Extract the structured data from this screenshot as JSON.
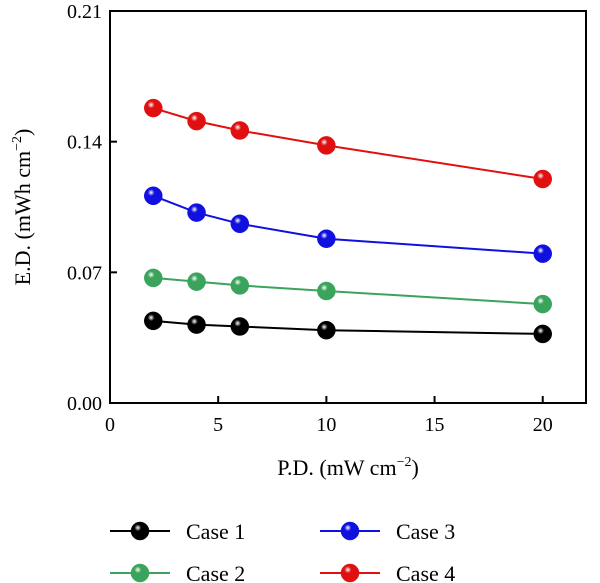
{
  "chart_data": {
    "type": "line",
    "xlabel": {
      "main": "P.D. (mW cm",
      "sup": "−2",
      "tail": ")"
    },
    "ylabel": {
      "main": "E.D. (mWh cm",
      "sup": "−2",
      "tail": ")"
    },
    "xlim": [
      0,
      22
    ],
    "ylim": [
      0,
      0.21
    ],
    "xticks": [
      0,
      5,
      10,
      15,
      20
    ],
    "xtick_labels": [
      "0",
      "5",
      "10",
      "15",
      "20"
    ],
    "yticks": [
      0,
      0.07,
      0.14,
      0.21
    ],
    "ytick_labels": [
      "0.00",
      "0.07",
      "0.14",
      "0.21"
    ],
    "x": [
      2,
      4,
      6,
      10,
      20
    ],
    "series": [
      {
        "name": "Case 1",
        "color": "#000000",
        "values": [
          0.044,
          0.042,
          0.041,
          0.039,
          0.037
        ]
      },
      {
        "name": "Case 2",
        "color": "#3aa35c",
        "values": [
          0.067,
          0.065,
          0.063,
          0.06,
          0.053
        ]
      },
      {
        "name": "Case 3",
        "color": "#1010e0",
        "values": [
          0.111,
          0.102,
          0.096,
          0.088,
          0.08
        ]
      },
      {
        "name": "Case 4",
        "color": "#e01010",
        "values": [
          0.158,
          0.151,
          0.146,
          0.138,
          0.12
        ]
      }
    ],
    "legend": "bottom, two columns",
    "grid": false
  }
}
